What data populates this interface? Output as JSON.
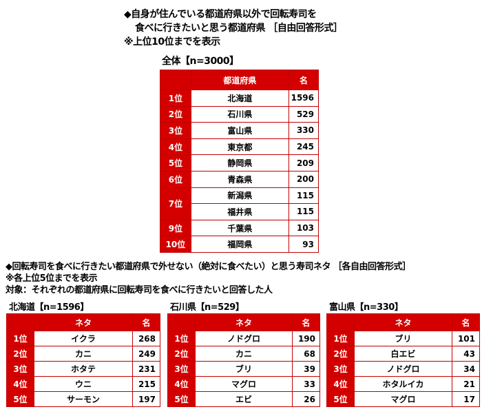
{
  "main": {
    "title_line1": "◆自身が住んでいる都道府県以外で回転寿司を",
    "title_line2": "食べに行きたいと思う都道府県 ［自由回答形式］",
    "note": "※上位10位までを表示",
    "group_label": "全体【n=3000】",
    "headers": [
      "",
      "都道府県",
      "名"
    ],
    "rows": [
      [
        "1位",
        "北海道",
        "1596"
      ],
      [
        "2位",
        "石川県",
        "529"
      ],
      [
        "3位",
        "富山県",
        "330"
      ],
      [
        "4位",
        "東京都",
        "245"
      ],
      [
        "5位",
        "静岡県",
        "209"
      ],
      [
        "6位",
        "青森県",
        "200"
      ],
      [
        "7位",
        "新潟県",
        "115"
      ],
      [
        "",
        "福井県",
        "115"
      ],
      [
        "9位",
        "千葉県",
        "103"
      ],
      [
        "10位",
        "福岡県",
        "93"
      ]
    ]
  },
  "sub": {
    "title": "◆回転寿司を食べに行きたい都道府県で外せない（絶対に食べたい）と思う寿司ネタ ［各自由回答形式］",
    "note": "※各上位5位までを表示",
    "target": "対象：それぞれの都道府県に回転寿司を食べに行きたいと回答した人",
    "headers": [
      "",
      "ネタ",
      "名"
    ],
    "tables": [
      {
        "label": "北海道【n=1596】",
        "rows": [
          [
            "1位",
            "イクラ",
            "268"
          ],
          [
            "2位",
            "カニ",
            "249"
          ],
          [
            "3位",
            "ホタテ",
            "231"
          ],
          [
            "4位",
            "ウニ",
            "215"
          ],
          [
            "5位",
            "サーモン",
            "197"
          ]
        ]
      },
      {
        "label": "石川県【n=529】",
        "rows": [
          [
            "1位",
            "ノドグロ",
            "190"
          ],
          [
            "2位",
            "カニ",
            "68"
          ],
          [
            "3位",
            "ブリ",
            "39"
          ],
          [
            "4位",
            "マグロ",
            "33"
          ],
          [
            "5位",
            "エビ",
            "26"
          ]
        ]
      },
      {
        "label": "富山県【n=330】",
        "rows": [
          [
            "1位",
            "ブリ",
            "101"
          ],
          [
            "2位",
            "白エビ",
            "43"
          ],
          [
            "3位",
            "ノドグロ",
            "34"
          ],
          [
            "4位",
            "ホタルイカ",
            "21"
          ],
          [
            "5位",
            "マグロ",
            "17"
          ]
        ]
      }
    ]
  },
  "colors": {
    "header_red": "#d40000"
  }
}
